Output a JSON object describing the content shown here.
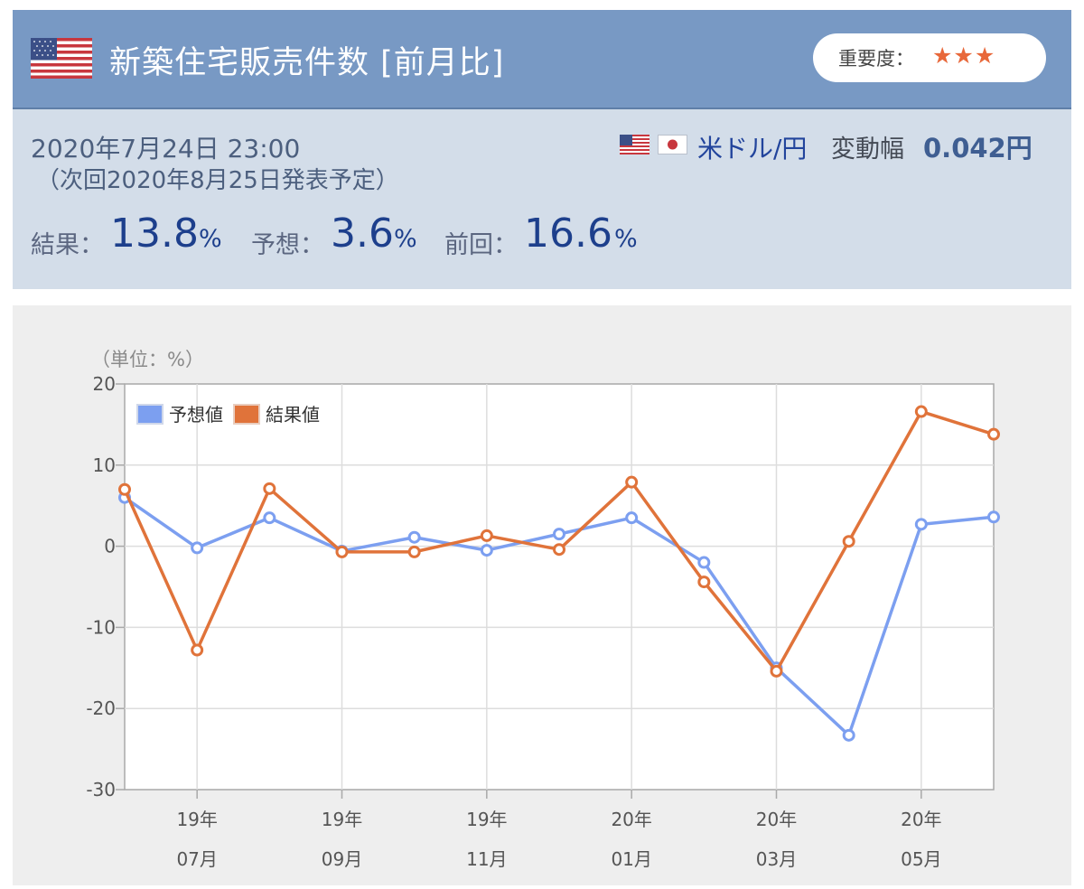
{
  "header": {
    "flag_icon": "us-flag-icon",
    "title": "新築住宅販売件数 [前月比]",
    "importance_label": "重要度：",
    "importance_stars": "★★★"
  },
  "info": {
    "date": "2020年7月24日 23:00",
    "next": "（次回2020年8月25日発表予定）",
    "pair_label": "米ドル/円",
    "range_label": "変動幅",
    "range_value": "0.042円",
    "result_label": "結果：",
    "result_value": "13.8",
    "forecast_label": "予想：",
    "forecast_value": "3.6",
    "previous_label": "前回：",
    "previous_value": "16.6",
    "unit": "%"
  },
  "colors": {
    "header_bg": "#7899c4",
    "info_bg": "#d3dde9",
    "forecast_line": "#7c9ff0",
    "result_line": "#e0733a",
    "value_text": "#1d3f8c"
  },
  "chart_data": {
    "type": "line",
    "unit_label": "（単位：%）",
    "ylim": [
      -30,
      20
    ],
    "yticks": [
      20,
      10,
      0,
      -10,
      -20,
      -30
    ],
    "x": [
      "2019-06",
      "2019-07",
      "2019-08",
      "2019-09",
      "2019-10",
      "2019-11",
      "2019-12",
      "2020-01",
      "2020-02",
      "2020-03",
      "2020-04",
      "2020-05",
      "2020-06"
    ],
    "xtick_labels": [
      {
        "year": "19年",
        "month": "07月",
        "index": 1
      },
      {
        "year": "19年",
        "month": "09月",
        "index": 3
      },
      {
        "year": "19年",
        "month": "11月",
        "index": 5
      },
      {
        "year": "20年",
        "month": "01月",
        "index": 7
      },
      {
        "year": "20年",
        "month": "03月",
        "index": 9
      },
      {
        "year": "20年",
        "month": "05月",
        "index": 11
      }
    ],
    "series": [
      {
        "name": "予想値",
        "color": "#7c9ff0",
        "values": [
          6.0,
          -0.2,
          3.5,
          -0.6,
          1.1,
          -0.5,
          1.5,
          3.5,
          -2.0,
          -15.0,
          -23.3,
          2.7,
          3.6
        ]
      },
      {
        "name": "結果値",
        "color": "#e0733a",
        "values": [
          7.0,
          -12.8,
          7.1,
          -0.7,
          -0.7,
          1.3,
          -0.4,
          7.9,
          -4.4,
          -15.4,
          0.6,
          16.6,
          13.8
        ]
      }
    ],
    "legend_position": "top-left",
    "grid": true
  }
}
